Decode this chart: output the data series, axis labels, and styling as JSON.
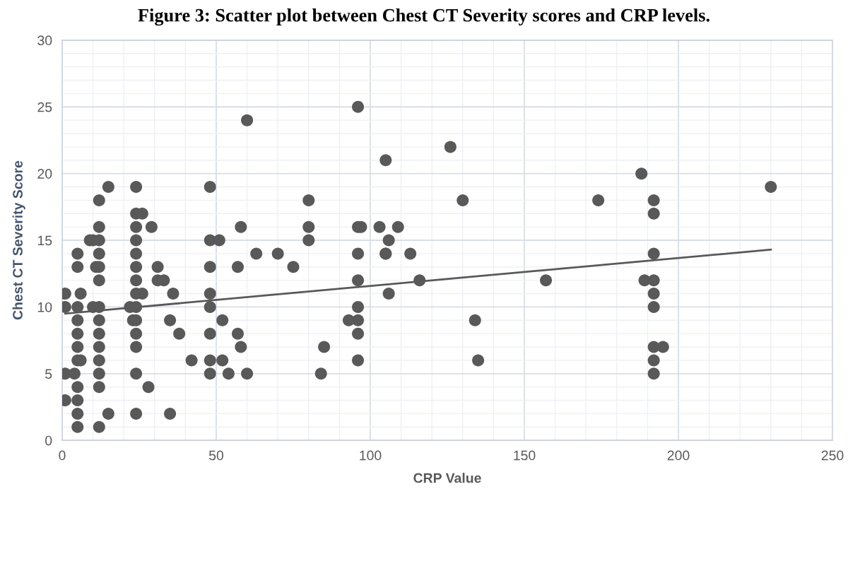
{
  "chart_data": {
    "type": "scatter",
    "title": "Figure 3: Scatter plot between Chest CT Severity scores and CRP levels.",
    "xlabel": "CRP Value",
    "ylabel": "Chest CT Severity Score",
    "xlim": [
      0,
      250
    ],
    "xticks": [
      0,
      50,
      100,
      150,
      200,
      250
    ],
    "ylim": [
      0,
      30
    ],
    "yticks": [
      0,
      5,
      10,
      15,
      20,
      25,
      30
    ],
    "grid": true,
    "marker": "circle",
    "series": [
      {
        "color": "#595959",
        "x": [
          15,
          24,
          12,
          24,
          26,
          12,
          24,
          29,
          9,
          10,
          12,
          24,
          5,
          12,
          24,
          5,
          11,
          12,
          24,
          31,
          12,
          24,
          31,
          33,
          1,
          6,
          24,
          26,
          36,
          1,
          5,
          10,
          12,
          22,
          24,
          5,
          12,
          23,
          24,
          35,
          5,
          12,
          24,
          38,
          5,
          12,
          24,
          5,
          6,
          12,
          42,
          1,
          4,
          12,
          24,
          5,
          12,
          28,
          1,
          5,
          5,
          15,
          24,
          35,
          5,
          12,
          96,
          60,
          105,
          48,
          80,
          58,
          80,
          96,
          97,
          103,
          109,
          48,
          51,
          80,
          106,
          63,
          70,
          96,
          105,
          48,
          57,
          75,
          96,
          48,
          106,
          48,
          96,
          52,
          93,
          96,
          48,
          57,
          96,
          58,
          85,
          48,
          52,
          96,
          48,
          54,
          60,
          84,
          126,
          188,
          130,
          174,
          192,
          192,
          105,
          113,
          192,
          116,
          157,
          189,
          192,
          192,
          192,
          134,
          192,
          195,
          135,
          192,
          192,
          230
        ],
        "values": [
          19,
          19,
          18,
          17,
          17,
          16,
          16,
          16,
          15,
          15,
          15,
          15,
          14,
          14,
          14,
          13,
          13,
          13,
          13,
          13,
          12,
          12,
          12,
          12,
          11,
          11,
          11,
          11,
          11,
          10,
          10,
          10,
          10,
          10,
          10,
          9,
          9,
          9,
          9,
          9,
          8,
          8,
          8,
          8,
          7,
          7,
          7,
          6,
          6,
          6,
          6,
          5,
          5,
          5,
          5,
          4,
          4,
          4,
          3,
          3,
          2,
          2,
          2,
          2,
          1,
          1,
          25,
          24,
          21,
          19,
          18,
          16,
          16,
          16,
          16,
          16,
          16,
          15,
          15,
          15,
          15,
          14,
          14,
          14,
          14,
          13,
          13,
          13,
          12,
          11,
          11,
          10,
          10,
          9,
          9,
          9,
          8,
          8,
          8,
          7,
          7,
          6,
          6,
          6,
          5,
          5,
          5,
          5,
          22,
          20,
          18,
          18,
          18,
          17,
          14,
          14,
          14,
          12,
          12,
          12,
          12,
          11,
          10,
          9,
          7,
          7,
          6,
          6,
          5,
          19
        ]
      },
      {
        "type": "line",
        "color": "#595959",
        "marker": "none",
        "line_style": "solid",
        "x": [
          1,
          230
        ],
        "values": [
          9.5,
          14.3
        ]
      }
    ]
  }
}
